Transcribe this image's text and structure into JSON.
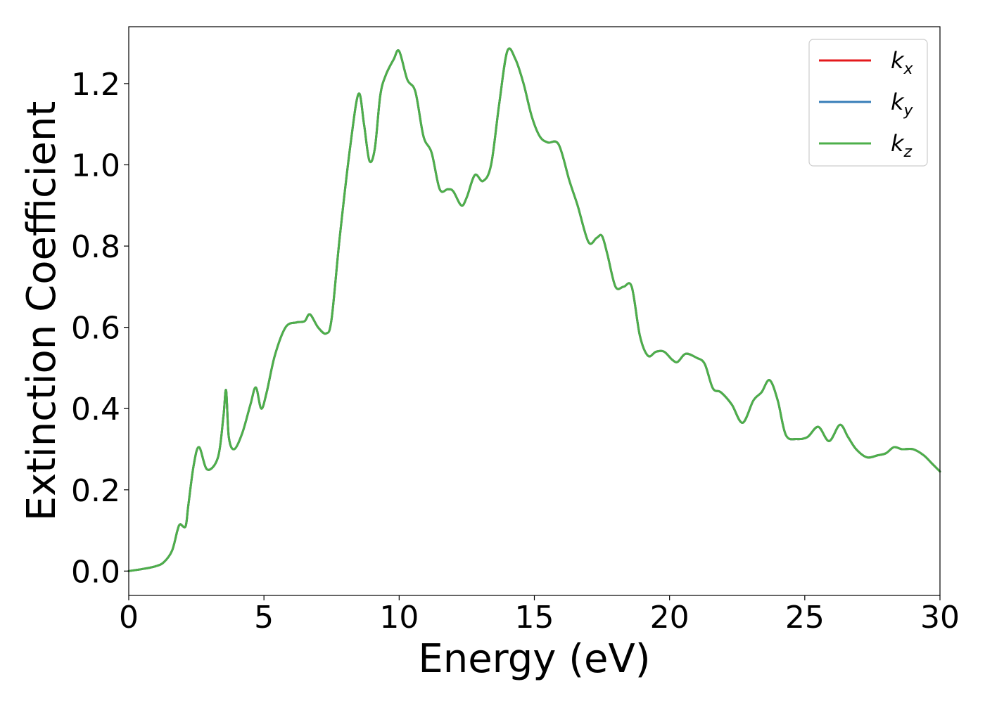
{
  "chart_data": {
    "type": "line",
    "title": "",
    "xlabel": "Energy (eV)",
    "ylabel": "Extinction Coefficient",
    "xlim": [
      0,
      30
    ],
    "ylim": [
      -0.06,
      1.34
    ],
    "xticks": [
      0,
      5,
      10,
      15,
      20,
      25,
      30
    ],
    "xtick_labels": [
      "0",
      "5",
      "10",
      "15",
      "20",
      "25",
      "30"
    ],
    "yticks": [
      0.0,
      0.2,
      0.4,
      0.6,
      0.8,
      1.0,
      1.2
    ],
    "ytick_labels": [
      "0.0",
      "0.2",
      "0.4",
      "0.6",
      "0.8",
      "1.0",
      "1.2"
    ],
    "grid": false,
    "legend_position": "top-right",
    "x": [
      0,
      0.5,
      1.0,
      1.3,
      1.6,
      1.8,
      1.9,
      2.1,
      2.2,
      2.4,
      2.6,
      2.9,
      3.3,
      3.5,
      3.6,
      3.7,
      3.9,
      4.2,
      4.5,
      4.7,
      4.9,
      5.1,
      5.4,
      5.8,
      6.2,
      6.5,
      6.7,
      7.0,
      7.3,
      7.5,
      7.8,
      8.2,
      8.5,
      8.7,
      8.9,
      9.1,
      9.3,
      9.5,
      9.8,
      10.0,
      10.3,
      10.6,
      10.9,
      11.2,
      11.5,
      11.8,
      12.0,
      12.3,
      12.5,
      12.8,
      13.1,
      13.4,
      13.7,
      14.0,
      14.3,
      14.6,
      14.9,
      15.2,
      15.5,
      15.9,
      16.3,
      16.6,
      17.0,
      17.3,
      17.5,
      17.7,
      18.0,
      18.3,
      18.6,
      18.9,
      19.2,
      19.5,
      19.8,
      20.1,
      20.3,
      20.6,
      21.0,
      21.3,
      21.6,
      21.9,
      22.3,
      22.7,
      23.1,
      23.4,
      23.7,
      24.0,
      24.3,
      24.7,
      25.1,
      25.5,
      25.9,
      26.3,
      26.6,
      26.9,
      27.3,
      27.7,
      28.0,
      28.3,
      28.6,
      29.0,
      29.4,
      29.7,
      30.0
    ],
    "series": [
      {
        "name": "k_x",
        "color": "#e41a1c",
        "values": [
          0.0,
          0.005,
          0.012,
          0.022,
          0.05,
          0.1,
          0.115,
          0.11,
          0.16,
          0.26,
          0.305,
          0.25,
          0.28,
          0.38,
          0.445,
          0.33,
          0.3,
          0.34,
          0.41,
          0.452,
          0.4,
          0.44,
          0.53,
          0.6,
          0.612,
          0.615,
          0.632,
          0.6,
          0.585,
          0.62,
          0.82,
          1.05,
          1.175,
          1.1,
          1.01,
          1.04,
          1.17,
          1.22,
          1.26,
          1.28,
          1.21,
          1.18,
          1.07,
          1.03,
          0.94,
          0.94,
          0.935,
          0.9,
          0.92,
          0.975,
          0.96,
          1.0,
          1.15,
          1.28,
          1.26,
          1.2,
          1.12,
          1.07,
          1.055,
          1.05,
          0.96,
          0.9,
          0.81,
          0.82,
          0.825,
          0.78,
          0.7,
          0.7,
          0.7,
          0.58,
          0.53,
          0.54,
          0.54,
          0.52,
          0.515,
          0.535,
          0.525,
          0.51,
          0.45,
          0.44,
          0.41,
          0.365,
          0.42,
          0.44,
          0.47,
          0.42,
          0.335,
          0.325,
          0.33,
          0.355,
          0.32,
          0.36,
          0.33,
          0.3,
          0.28,
          0.285,
          0.29,
          0.305,
          0.3,
          0.3,
          0.285,
          0.265,
          0.245
        ]
      },
      {
        "name": "k_y",
        "color": "#377eb8",
        "values": [
          0.0,
          0.005,
          0.012,
          0.022,
          0.05,
          0.1,
          0.115,
          0.11,
          0.16,
          0.26,
          0.305,
          0.25,
          0.28,
          0.38,
          0.445,
          0.33,
          0.3,
          0.34,
          0.41,
          0.452,
          0.4,
          0.44,
          0.53,
          0.6,
          0.612,
          0.615,
          0.632,
          0.6,
          0.585,
          0.62,
          0.82,
          1.05,
          1.175,
          1.1,
          1.01,
          1.04,
          1.17,
          1.22,
          1.26,
          1.28,
          1.21,
          1.18,
          1.07,
          1.03,
          0.94,
          0.94,
          0.935,
          0.9,
          0.92,
          0.975,
          0.96,
          1.0,
          1.15,
          1.28,
          1.26,
          1.2,
          1.12,
          1.07,
          1.055,
          1.05,
          0.96,
          0.9,
          0.81,
          0.82,
          0.825,
          0.78,
          0.7,
          0.7,
          0.7,
          0.58,
          0.53,
          0.54,
          0.54,
          0.52,
          0.515,
          0.535,
          0.525,
          0.51,
          0.45,
          0.44,
          0.41,
          0.365,
          0.42,
          0.44,
          0.47,
          0.42,
          0.335,
          0.325,
          0.33,
          0.355,
          0.32,
          0.36,
          0.33,
          0.3,
          0.28,
          0.285,
          0.29,
          0.305,
          0.3,
          0.3,
          0.285,
          0.265,
          0.245
        ]
      },
      {
        "name": "k_z",
        "color": "#4daf4a",
        "values": [
          0.0,
          0.005,
          0.012,
          0.022,
          0.05,
          0.1,
          0.115,
          0.11,
          0.16,
          0.26,
          0.305,
          0.25,
          0.28,
          0.38,
          0.445,
          0.33,
          0.3,
          0.34,
          0.41,
          0.452,
          0.4,
          0.44,
          0.53,
          0.6,
          0.612,
          0.615,
          0.632,
          0.6,
          0.585,
          0.62,
          0.82,
          1.05,
          1.175,
          1.1,
          1.01,
          1.04,
          1.17,
          1.22,
          1.26,
          1.28,
          1.21,
          1.18,
          1.07,
          1.03,
          0.94,
          0.94,
          0.935,
          0.9,
          0.92,
          0.975,
          0.96,
          1.0,
          1.15,
          1.28,
          1.26,
          1.2,
          1.12,
          1.07,
          1.055,
          1.05,
          0.96,
          0.9,
          0.81,
          0.82,
          0.825,
          0.78,
          0.7,
          0.7,
          0.7,
          0.58,
          0.53,
          0.54,
          0.54,
          0.52,
          0.515,
          0.535,
          0.525,
          0.51,
          0.45,
          0.44,
          0.41,
          0.365,
          0.42,
          0.44,
          0.47,
          0.42,
          0.335,
          0.325,
          0.33,
          0.355,
          0.32,
          0.36,
          0.33,
          0.3,
          0.28,
          0.285,
          0.29,
          0.305,
          0.3,
          0.3,
          0.285,
          0.265,
          0.245
        ]
      }
    ],
    "legend": [
      {
        "base": "k",
        "sub": "x",
        "color": "#e41a1c"
      },
      {
        "base": "k",
        "sub": "y",
        "color": "#377eb8"
      },
      {
        "base": "k",
        "sub": "z",
        "color": "#4daf4a"
      }
    ]
  }
}
